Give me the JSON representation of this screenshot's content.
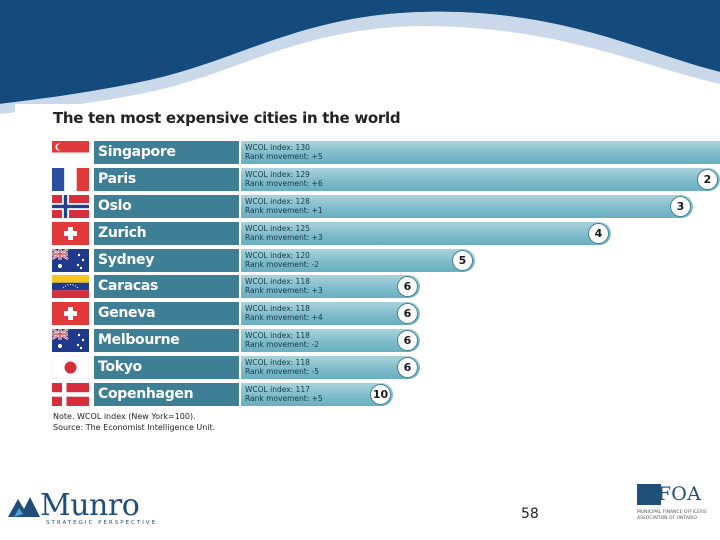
{
  "slide": {
    "page_number": "58",
    "logo_left": {
      "name": "Munro",
      "tagline": "STRATEGIC PERSPECTIVE"
    },
    "logo_right": {
      "name": "MFOA",
      "subtitle": "Municipal Finance Officers' Association of Ontario"
    },
    "colors": {
      "header_blue": "#154a7c",
      "wave_light": "#c9d9ea",
      "city_label": "#3f7f95",
      "bar": "#7fbccb"
    }
  },
  "chart_data": {
    "type": "bar",
    "orientation": "horizontal",
    "title": "The ten most expensive cities in the world",
    "index_label": "WCOL index",
    "rank_movement_label": "Rank movement",
    "categories": [
      "Singapore",
      "Paris",
      "Oslo",
      "Zurich",
      "Sydney",
      "Caracas",
      "Geneva",
      "Melbourne",
      "Tokyo",
      "Copenhagen"
    ],
    "flags": [
      "singapore-flag",
      "france-flag",
      "norway-flag",
      "switzerland-flag",
      "australia-flag",
      "venezuela-flag",
      "switzerland-flag",
      "australia-flag",
      "japan-flag",
      "denmark-flag"
    ],
    "series": [
      {
        "name": "WCOL index",
        "values": [
          130,
          129,
          128,
          125,
          120,
          118,
          118,
          118,
          118,
          117
        ]
      }
    ],
    "stats_text": [
      [
        "WCOL index: 130",
        "Rank movement: +5"
      ],
      [
        "WCOL index: 129",
        "Rank movement: +6"
      ],
      [
        "WCOL index: 128",
        "Rank movement: +1"
      ],
      [
        "WCOL index: 125",
        "Rank movement: +3"
      ],
      [
        "WCOL index: 120",
        "Rank movement: -2"
      ],
      [
        "WCOL index: 118",
        "Rank movement: +3"
      ],
      [
        "WCOL index: 118",
        "Rank movement: +4"
      ],
      [
        "WCOL index: 118",
        "Rank movement: -2"
      ],
      [
        "WCOL index: 118",
        "Rank movement: -5"
      ],
      [
        "WCOL index: 117",
        "Rank movement: +5"
      ]
    ],
    "rank_movement": [
      "+5",
      "+6",
      "+1",
      "+3",
      "-2",
      "+3",
      "+4",
      "-2",
      "-5",
      "+5"
    ],
    "ranks": [
      "1",
      "2",
      "3",
      "4",
      "5",
      "6",
      "6",
      "6",
      "6",
      "10"
    ],
    "notes": [
      "Note. WCOL index (New York=100).",
      "Source: The Economist Intelligence Unit."
    ]
  }
}
